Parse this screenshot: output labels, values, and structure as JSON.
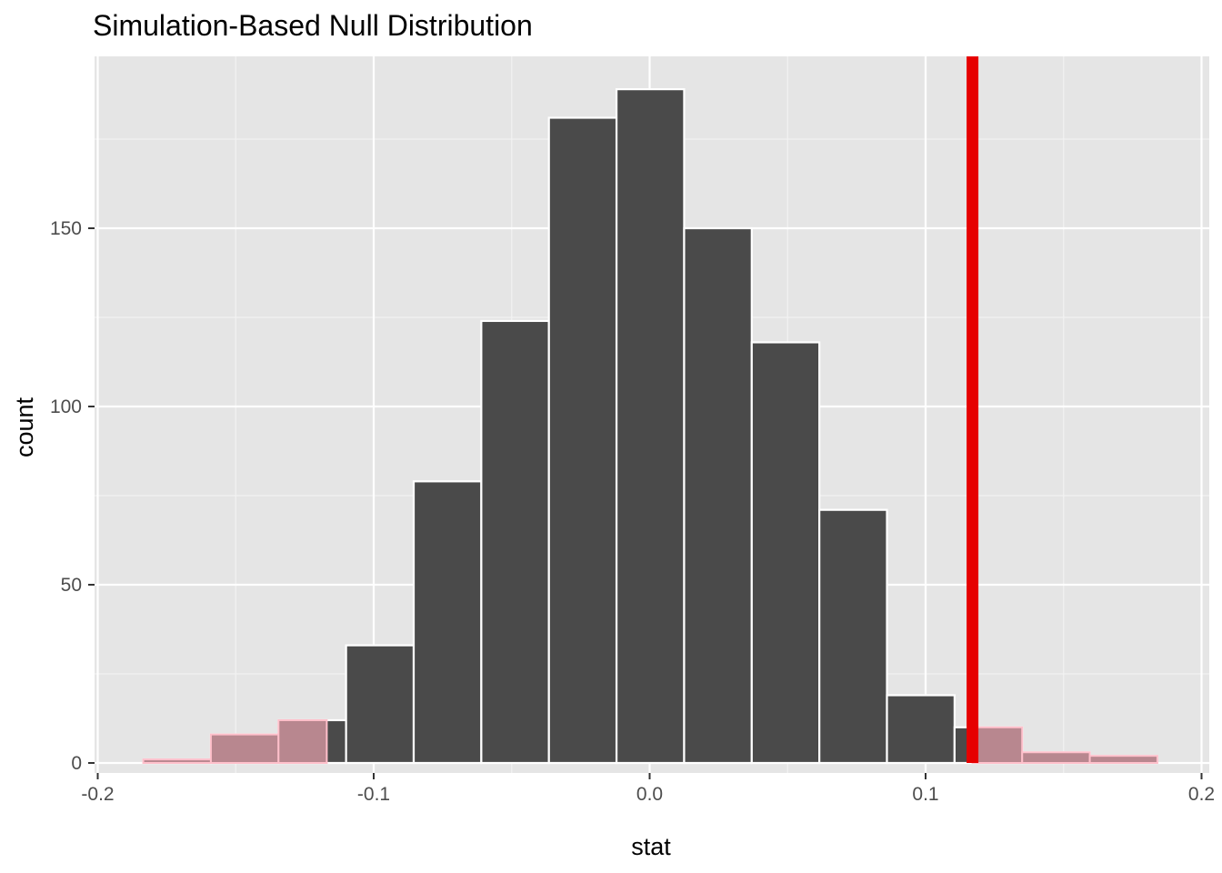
{
  "chart_data": {
    "type": "bar",
    "title": "Simulation-Based Null Distribution",
    "xlabel": "stat",
    "ylabel": "count",
    "xlim": [
      -0.2,
      0.2
    ],
    "ylim": [
      0,
      200
    ],
    "x_ticks": [
      -0.2,
      -0.1,
      0.0,
      0.1,
      0.2
    ],
    "x_tick_labels": [
      "-0.2",
      "-0.1",
      "0.0",
      "0.1",
      "0.2"
    ],
    "y_ticks": [
      0,
      50,
      100,
      150
    ],
    "y_tick_labels": [
      "0",
      "50",
      "100",
      "150"
    ],
    "grid": true,
    "legend": "none",
    "histogram": {
      "bin_width": 0.0245,
      "bins": [
        {
          "x_min": -0.1835,
          "x_max": -0.159,
          "count": 1
        },
        {
          "x_min": -0.159,
          "x_max": -0.1345,
          "count": 8
        },
        {
          "x_min": -0.1345,
          "x_max": -0.11,
          "count": 12
        },
        {
          "x_min": -0.11,
          "x_max": -0.0855,
          "count": 33
        },
        {
          "x_min": -0.0855,
          "x_max": -0.061,
          "count": 79
        },
        {
          "x_min": -0.061,
          "x_max": -0.0365,
          "count": 124
        },
        {
          "x_min": -0.0365,
          "x_max": -0.012,
          "count": 181
        },
        {
          "x_min": -0.012,
          "x_max": 0.0125,
          "count": 189
        },
        {
          "x_min": 0.0125,
          "x_max": 0.037,
          "count": 150
        },
        {
          "x_min": 0.037,
          "x_max": 0.0615,
          "count": 118
        },
        {
          "x_min": 0.0615,
          "x_max": 0.086,
          "count": 71
        },
        {
          "x_min": 0.086,
          "x_max": 0.1105,
          "count": 19
        },
        {
          "x_min": 0.1105,
          "x_max": 0.135,
          "count": 10
        },
        {
          "x_min": 0.135,
          "x_max": 0.1595,
          "count": 3
        },
        {
          "x_min": 0.1595,
          "x_max": 0.184,
          "count": 2
        }
      ]
    },
    "observed_stat": 0.117,
    "shade_direction": "two-sided",
    "colors": {
      "bar_fill": "#4a4a4a",
      "bar_stroke": "#ffffff",
      "shade_fill": "#b8878f",
      "shade_stroke": "#ffc0cb",
      "obs_line": "#e60000",
      "panel_bg": "#e5e5e5",
      "grid_major": "#ffffff",
      "grid_minor": "#f2f2f2"
    }
  }
}
